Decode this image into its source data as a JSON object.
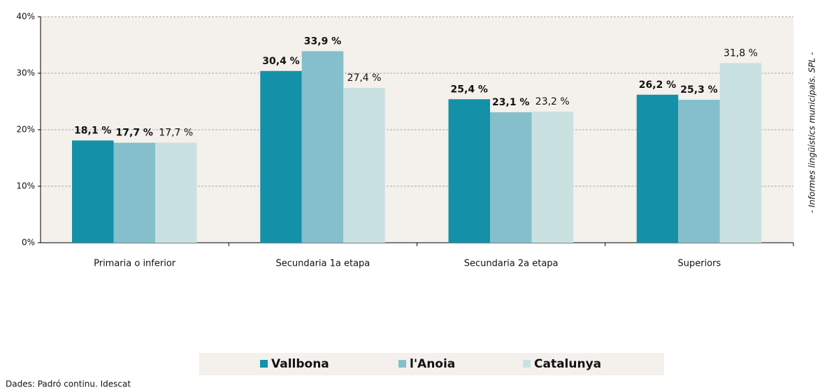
{
  "chart_data": {
    "type": "bar",
    "categories": [
      "Primaria o inferior",
      "Secundaria 1a etapa",
      "Secundaria 2a etapa",
      "Superiors"
    ],
    "series": [
      {
        "name": "Vallbona",
        "color": "#1590a9",
        "values": [
          18.1,
          30.4,
          25.4,
          26.2
        ],
        "value_labels": [
          "18,1 %",
          "30,4 %",
          "25,4 %",
          "26,2 %"
        ]
      },
      {
        "name": "l'Anoia",
        "color": "#85bfcc",
        "values": [
          17.7,
          33.9,
          23.1,
          25.3
        ],
        "value_labels": [
          "17,7 %",
          "33,9 %",
          "23,1 %",
          "25,3 %"
        ]
      },
      {
        "name": "Catalunya",
        "color": "#c9e1e1",
        "values": [
          17.7,
          27.4,
          23.2,
          31.8
        ],
        "value_labels": [
          "17,7 %",
          "27,4 %",
          "23,2 %",
          "31,8 %"
        ]
      }
    ],
    "ylim": [
      0,
      40
    ],
    "yticks": [
      {
        "value": 0,
        "label": "0%"
      },
      {
        "value": 10,
        "label": "10%"
      },
      {
        "value": 20,
        "label": "20%"
      },
      {
        "value": 30,
        "label": "30%"
      },
      {
        "value": 40,
        "label": "40%"
      }
    ],
    "grid": true,
    "legend": "bottom",
    "source": "Dades: Padró continu. Idescat",
    "side_note": "- Informes lingüístics municipals. SPL -"
  }
}
